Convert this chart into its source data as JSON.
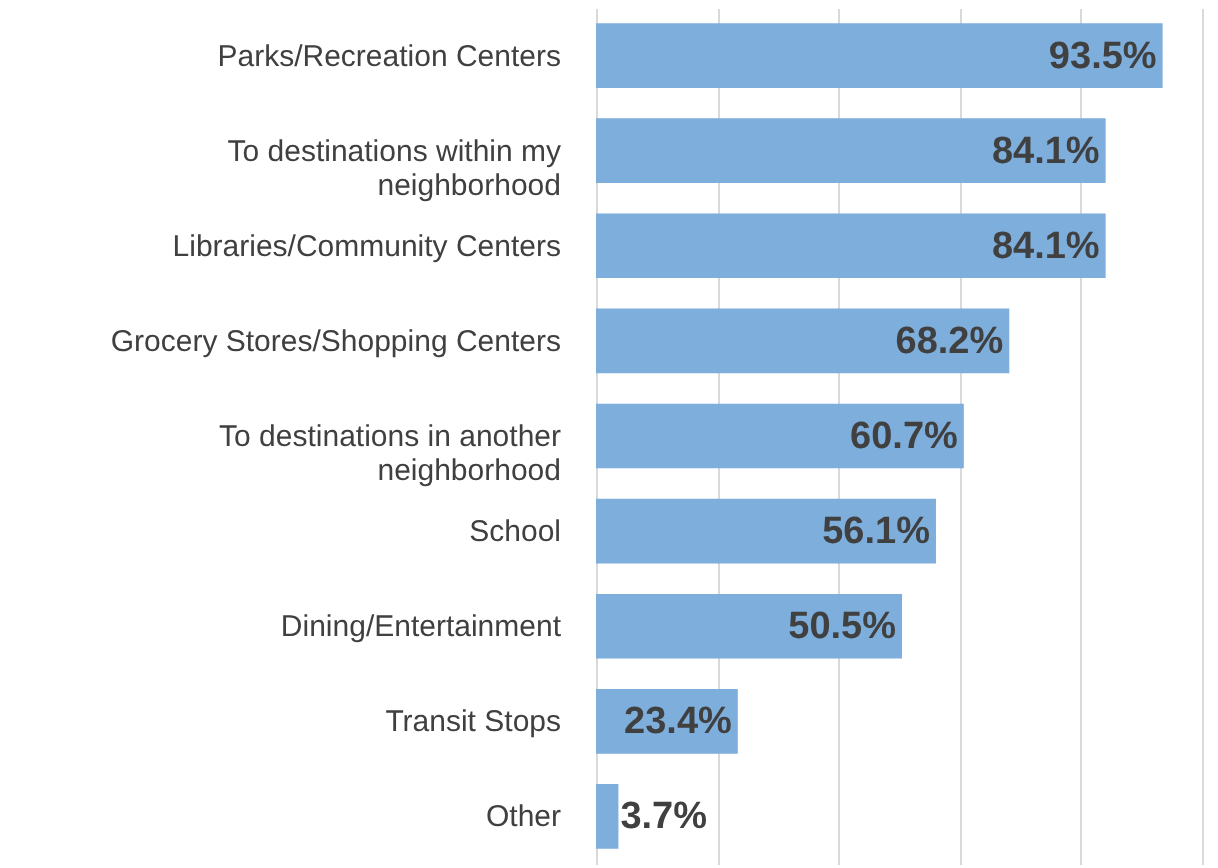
{
  "chart_data": {
    "type": "bar",
    "orientation": "horizontal",
    "categories": [
      "Parks/Recreation Centers",
      "To destinations within my neighborhood",
      "Libraries/Community Centers",
      "Grocery Stores/Shopping Centers",
      "To destinations in another neighborhood",
      "School",
      "Dining/Entertainment",
      "Transit Stops",
      "Other"
    ],
    "values": [
      93.5,
      84.1,
      84.1,
      68.2,
      60.7,
      56.1,
      50.5,
      23.4,
      3.7
    ],
    "value_labels": [
      "93.5%",
      "84.1%",
      "84.1%",
      "68.2%",
      "60.7%",
      "56.1%",
      "50.5%",
      "23.4%",
      "3.7%"
    ],
    "color": "#7eaedc",
    "xlim": [
      0,
      100
    ],
    "xticks": [
      {
        "value": 0,
        "label": null
      },
      {
        "value": 20,
        "label": null
      },
      {
        "value": 40,
        "label": null
      },
      {
        "value": 60,
        "label": null
      },
      {
        "value": 80,
        "label": null
      },
      {
        "value": 100,
        "label": null
      }
    ],
    "grid": "x",
    "tick_labels": "y"
  }
}
